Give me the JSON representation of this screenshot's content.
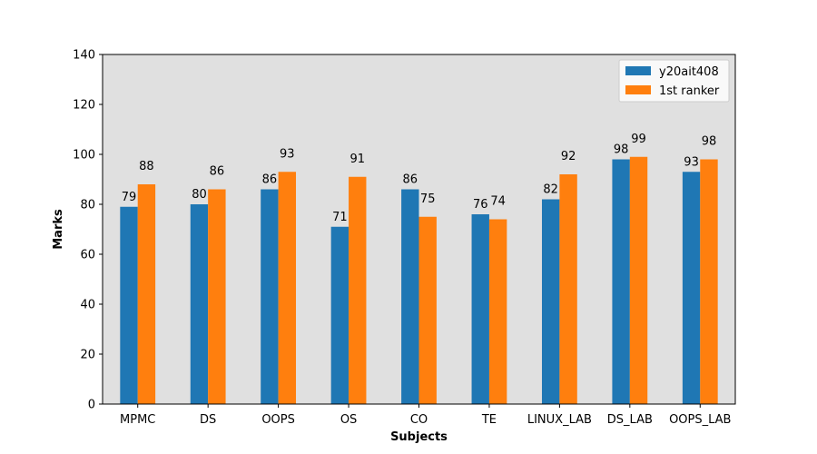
{
  "chart_data": {
    "type": "bar",
    "title": "",
    "xlabel": "Subjects",
    "ylabel": "Marks",
    "ylim": [
      0,
      140
    ],
    "yticks": [
      0,
      20,
      40,
      60,
      80,
      100,
      120,
      140
    ],
    "categories": [
      "MPMC",
      "DS",
      "OOPS",
      "OS",
      "CO",
      "TE",
      "LINUX_LAB",
      "DS_LAB",
      "OOPS_LAB"
    ],
    "series": [
      {
        "name": "y20ait408",
        "color": "#1f77b4",
        "values": [
          79,
          80,
          86,
          71,
          86,
          76,
          82,
          98,
          93
        ]
      },
      {
        "name": "1st ranker",
        "color": "#ff7f0e",
        "values": [
          88,
          86,
          93,
          91,
          75,
          74,
          92,
          99,
          98
        ]
      }
    ],
    "legend": {
      "position": "top-right"
    },
    "plot_background": "#e0e0e0",
    "grid": false,
    "show_data_labels": true
  }
}
